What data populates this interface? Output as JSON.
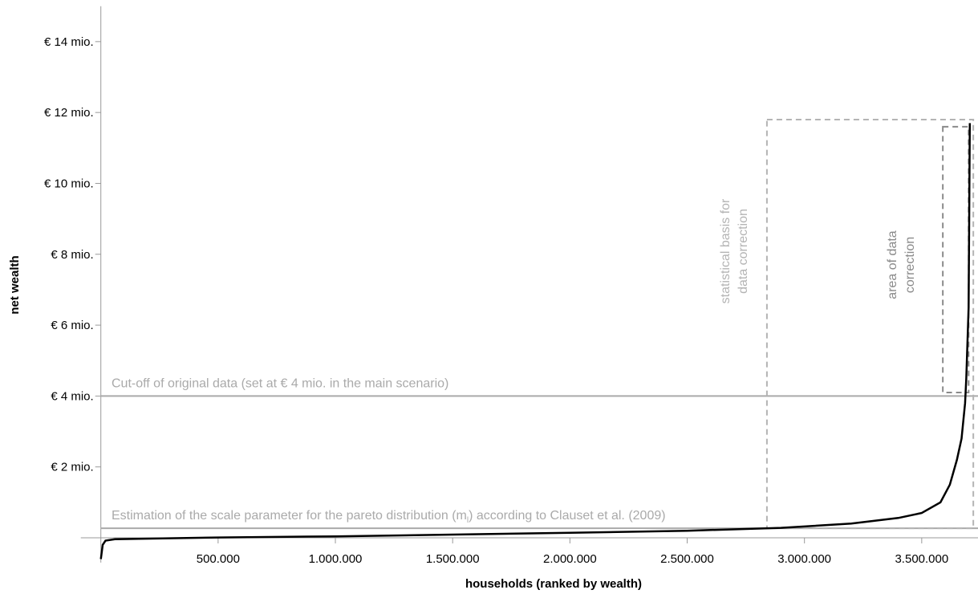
{
  "chart_data": {
    "type": "line",
    "x_label": "households (ranked by wealth)",
    "y_label": "net wealth",
    "xlim": [
      0,
      3740000
    ],
    "ylim": [
      -700000,
      15000000
    ],
    "xticks": [
      {
        "value": 500000,
        "label": "500.000"
      },
      {
        "value": 1000000,
        "label": "1.000.000"
      },
      {
        "value": 1500000,
        "label": "1.500.000"
      },
      {
        "value": 2000000,
        "label": "2.000.000"
      },
      {
        "value": 2500000,
        "label": "2.500.000"
      },
      {
        "value": 3000000,
        "label": "3.000.000"
      },
      {
        "value": 3500000,
        "label": "3.500.000"
      }
    ],
    "yticks": [
      {
        "value": 2000000,
        "label": "€ 2 mio."
      },
      {
        "value": 4000000,
        "label": "€ 4 mio."
      },
      {
        "value": 6000000,
        "label": "€ 6 mio."
      },
      {
        "value": 8000000,
        "label": "€ 8 mio."
      },
      {
        "value": 10000000,
        "label": "€ 10 mio."
      },
      {
        "value": 12000000,
        "label": "€ 12 mio."
      },
      {
        "value": 14000000,
        "label": "€ 14 mio."
      }
    ],
    "series": [
      {
        "color": "#000000",
        "x": [
          0,
          8000,
          20000,
          60000,
          500000,
          1000000,
          1500000,
          2000000,
          2500000,
          2900000,
          3200000,
          3400000,
          3500000,
          3580000,
          3620000,
          3650000,
          3670000,
          3685000,
          3690000,
          3700000,
          3705000
        ],
        "values": [
          -600000,
          -200000,
          -80000,
          -40000,
          10000,
          40000,
          90000,
          140000,
          200000,
          280000,
          400000,
          560000,
          700000,
          1000000,
          1500000,
          2200000,
          2800000,
          3800000,
          4500000,
          6500000,
          11700000
        ]
      }
    ],
    "hlines": [
      {
        "value": 4000000,
        "color": "#aaaaaa",
        "label": "Cut-off of original data (set at € 4 mio. in the main scenario)"
      },
      {
        "value": 270000,
        "color": "#aaaaaa",
        "label_before": "Estimation of the scale parameter for the pareto distribution (m",
        "label_sub": "l",
        "label_after": ") according to Clauset et al. (2009)"
      }
    ],
    "regions": [
      {
        "x": [
          2840000,
          3720000
        ],
        "y": [
          270000,
          11800000
        ],
        "color": "#b4b4b4",
        "label_lines": [
          "statistical basis for",
          "data correction"
        ]
      },
      {
        "x": [
          3590000,
          3700000
        ],
        "y": [
          4100000,
          11600000
        ],
        "color": "#8a8a8a",
        "label_lines": [
          "area of data",
          "correction"
        ]
      }
    ]
  }
}
